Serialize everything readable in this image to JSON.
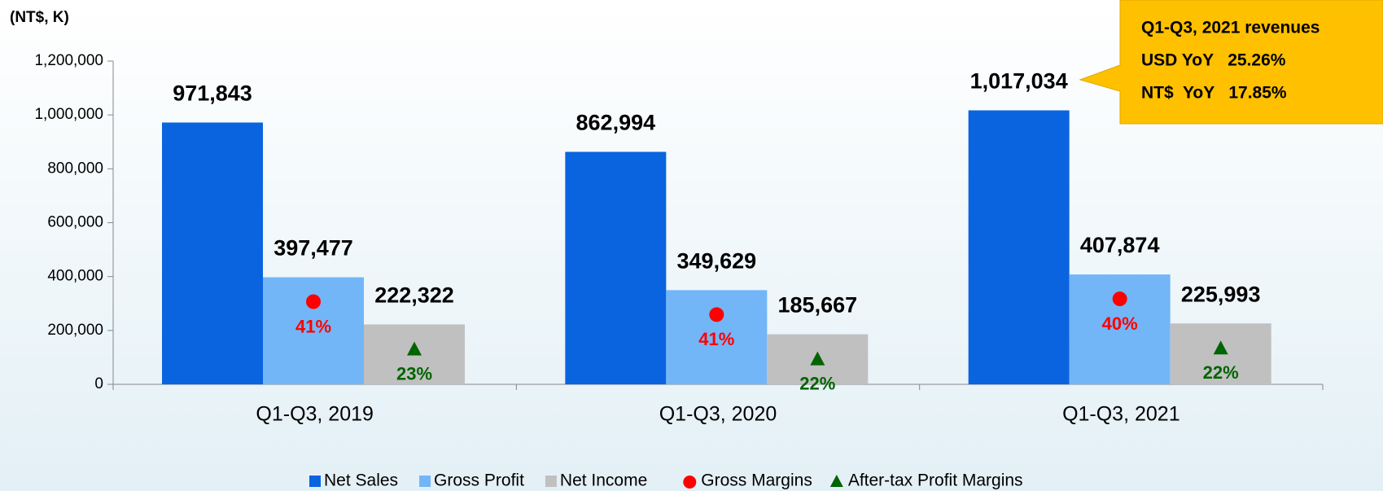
{
  "chart_data": {
    "type": "bar",
    "unit_label": "(NT$, K)",
    "categories": [
      "Q1-Q3, 2019",
      "Q1-Q3, 2020",
      "Q1-Q3, 2021"
    ],
    "series": [
      {
        "name": "Net Sales",
        "color": "#0a64e0",
        "values": [
          971843,
          862994,
          1017034
        ],
        "value_labels": [
          "971,843",
          "862,994",
          "1,017,034"
        ]
      },
      {
        "name": "Gross Profit",
        "color": "#72b6f8",
        "values": [
          397477,
          349629,
          407874
        ],
        "value_labels": [
          "397,477",
          "349,629",
          "407,874"
        ]
      },
      {
        "name": "Net Income",
        "color": "#c0c0c0",
        "values": [
          222322,
          185667,
          225993
        ],
        "value_labels": [
          "222,322",
          "185,667",
          "225,993"
        ]
      }
    ],
    "margins": [
      {
        "name": "Gross Margins",
        "color": "#ff0000",
        "marker": "circle",
        "values": [
          41,
          41,
          40
        ],
        "value_labels": [
          "41%",
          "41%",
          "40%"
        ]
      },
      {
        "name": "After-tax Profit Margins",
        "color": "#006400",
        "marker": "triangle",
        "values": [
          23,
          22,
          22
        ],
        "value_labels": [
          "23%",
          "22%",
          "22%"
        ]
      }
    ],
    "ylim": [
      0,
      1200000
    ],
    "yticks": [
      0,
      {
        "value": 200000,
        "label": "200,000"
      },
      {
        "value": 400000,
        "label": "400,000"
      },
      {
        "value": 600000,
        "label": "600,000"
      },
      {
        "value": 800000,
        "label": "800,000"
      },
      {
        "value": 1000000,
        "label": "1,000,000"
      },
      {
        "value": 1200000,
        "label": "1,200,000"
      }
    ],
    "grid": false,
    "legend": "bottom",
    "annotation": [
      "Q1-Q3, 2021 revenues",
      "USD YoY   25.26%",
      "NT$  YoY   17.85%"
    ]
  }
}
